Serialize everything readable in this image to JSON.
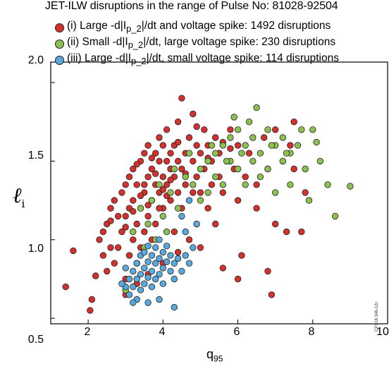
{
  "chart_data": {
    "type": "scatter",
    "title": "JET-ILW disruptions in the range of Pulse No: 81028-92504",
    "title_prefix": "JET-ILW disruptions in the range of Pulse ",
    "title_no": "No",
    "title_suffix": ": 81028-92504",
    "xlabel": "q",
    "xlabel_sub": "95",
    "ylabel": "ℓ",
    "ylabel_sub": "i",
    "xlim": [
      1,
      10
    ],
    "ylim": [
      0.5,
      2.1
    ],
    "xticks": [
      "2",
      "4",
      "6",
      "8",
      "10"
    ],
    "yticks": [
      "0.5",
      "1.0",
      "1.5",
      "2.0"
    ],
    "grid": false,
    "legend_position": "top-left",
    "figure_code": "CPS18.346-12c",
    "series": [
      {
        "name": "(i) Large -d|Ip_2|/dt and voltage spike: 1492 disruptions",
        "legend_parts": [
          "(i) Large -d|I",
          "p_2",
          "|/dt and voltage spike: 1492 disruptions"
        ],
        "color": "#d2322d",
        "points": [
          [
            1.4,
            0.7
          ],
          [
            1.6,
            0.93
          ],
          [
            2.05,
            0.55
          ],
          [
            2.1,
            0.62
          ],
          [
            2.2,
            0.77
          ],
          [
            2.3,
            1.0
          ],
          [
            2.4,
            1.05
          ],
          [
            2.5,
            1.1
          ],
          [
            2.4,
            0.9
          ],
          [
            2.6,
            0.95
          ],
          [
            2.6,
            1.2
          ],
          [
            2.7,
            1.25
          ],
          [
            2.5,
            0.8
          ],
          [
            2.7,
            0.85
          ],
          [
            2.8,
            0.95
          ],
          [
            2.9,
            1.3
          ],
          [
            2.9,
            1.05
          ],
          [
            3.0,
            1.15
          ],
          [
            3.0,
            1.35
          ],
          [
            3.0,
            0.75
          ],
          [
            3.1,
            0.9
          ],
          [
            3.1,
            1.2
          ],
          [
            3.1,
            1.4
          ],
          [
            3.2,
            1.0
          ],
          [
            3.2,
            1.25
          ],
          [
            3.2,
            1.45
          ],
          [
            3.3,
            1.1
          ],
          [
            3.3,
            1.35
          ],
          [
            3.3,
            0.85
          ],
          [
            3.4,
            1.2
          ],
          [
            3.4,
            1.5
          ],
          [
            3.4,
            0.95
          ],
          [
            3.5,
            1.3
          ],
          [
            3.5,
            1.05
          ],
          [
            3.5,
            1.55
          ],
          [
            3.6,
            1.15
          ],
          [
            3.6,
            1.4
          ],
          [
            3.6,
            1.6
          ],
          [
            3.7,
            1.25
          ],
          [
            3.7,
            1.0
          ],
          [
            3.7,
            1.45
          ],
          [
            3.8,
            1.35
          ],
          [
            3.8,
            1.55
          ],
          [
            3.8,
            1.1
          ],
          [
            3.9,
            1.3
          ],
          [
            3.9,
            1.5
          ],
          [
            3.9,
            1.65
          ],
          [
            4.0,
            1.2
          ],
          [
            4.0,
            1.4
          ],
          [
            4.0,
            1.6
          ],
          [
            4.1,
            1.35
          ],
          [
            4.1,
            1.5
          ],
          [
            4.1,
            1.7
          ],
          [
            4.2,
            1.25
          ],
          [
            4.2,
            1.45
          ],
          [
            4.2,
            1.55
          ],
          [
            4.3,
            1.4
          ],
          [
            4.3,
            1.6
          ],
          [
            4.3,
            1.05
          ],
          [
            4.4,
            1.5
          ],
          [
            4.4,
            1.3
          ],
          [
            4.4,
            1.75
          ],
          [
            4.5,
            1.9
          ],
          [
            4.5,
            1.45
          ],
          [
            4.5,
            1.2
          ],
          [
            4.6,
            1.55
          ],
          [
            4.6,
            1.35
          ],
          [
            4.7,
            1.65
          ],
          [
            4.7,
            1.0
          ],
          [
            4.8,
            1.5
          ],
          [
            4.8,
            1.8
          ],
          [
            4.9,
            1.4
          ],
          [
            4.9,
            1.6
          ],
          [
            5.0,
            1.3
          ],
          [
            5.0,
            1.55
          ],
          [
            5.0,
            0.95
          ],
          [
            5.1,
            1.7
          ],
          [
            5.1,
            1.45
          ],
          [
            5.2,
            1.2
          ],
          [
            5.2,
            1.6
          ],
          [
            5.3,
            1.5
          ],
          [
            5.3,
            1.35
          ],
          [
            5.4,
            1.65
          ],
          [
            5.4,
            1.1
          ],
          [
            5.5,
            1.55
          ],
          [
            5.5,
            1.4
          ],
          [
            5.6,
            1.3
          ],
          [
            5.7,
            1.5
          ],
          [
            5.8,
            1.7
          ],
          [
            5.9,
            1.45
          ],
          [
            6.0,
            1.25
          ],
          [
            6.0,
            1.6
          ],
          [
            6.1,
            0.9
          ],
          [
            6.2,
            1.4
          ],
          [
            6.3,
            1.55
          ],
          [
            6.5,
            1.2
          ],
          [
            6.5,
            1.35
          ],
          [
            6.7,
            1.65
          ],
          [
            6.8,
            1.45
          ],
          [
            6.9,
            0.65
          ],
          [
            7.0,
            1.7
          ],
          [
            7.0,
            1.1
          ],
          [
            7.2,
            1.5
          ],
          [
            7.3,
            1.05
          ],
          [
            7.4,
            1.6
          ],
          [
            7.5,
            1.75
          ],
          [
            7.5,
            1.45
          ],
          [
            7.7,
            1.05
          ],
          [
            7.8,
            1.3
          ],
          [
            3.0,
            0.65
          ],
          [
            3.3,
            0.72
          ],
          [
            3.6,
            0.78
          ],
          [
            4.0,
            0.85
          ],
          [
            4.4,
            0.92
          ],
          [
            5.6,
            0.82
          ],
          [
            6.0,
            0.75
          ],
          [
            6.8,
            0.8
          ],
          [
            2.8,
            1.15
          ],
          [
            3.5,
            1.35
          ],
          [
            3.7,
            1.52
          ],
          [
            3.9,
            1.2
          ],
          [
            4.1,
            1.28
          ],
          [
            3.4,
            1.28
          ],
          [
            3.6,
            1.22
          ],
          [
            3.8,
            1.42
          ],
          [
            4.0,
            1.32
          ],
          [
            4.2,
            1.38
          ],
          [
            4.6,
            1.42
          ],
          [
            5.2,
            1.52
          ],
          [
            4.8,
            1.3
          ],
          [
            5.6,
            1.62
          ],
          [
            3.2,
            1.18
          ],
          [
            3.0,
            1.08
          ],
          [
            3.3,
            1.48
          ],
          [
            4.4,
            1.62
          ],
          [
            4.9,
            1.72
          ],
          [
            5.8,
            1.58
          ],
          [
            2.6,
            1.12
          ]
        ]
      },
      {
        "name": "(ii) Small -d|Ip_2|/dt, large voltage spike: 230 disruptions",
        "legend_parts": [
          "(ii) Small -d|I",
          "p_2",
          "|/dt, large voltage spike: 230 disruptions"
        ],
        "color": "#8cc152",
        "points": [
          [
            3.4,
            1.2
          ],
          [
            3.6,
            1.1
          ],
          [
            3.8,
            1.0
          ],
          [
            4.0,
            1.15
          ],
          [
            4.2,
            1.3
          ],
          [
            4.4,
            1.2
          ],
          [
            4.6,
            1.4
          ],
          [
            4.8,
            1.35
          ],
          [
            5.0,
            1.45
          ],
          [
            5.0,
            1.25
          ],
          [
            5.2,
            1.5
          ],
          [
            5.2,
            1.3
          ],
          [
            5.4,
            1.55
          ],
          [
            5.4,
            1.4
          ],
          [
            5.6,
            1.6
          ],
          [
            5.6,
            1.35
          ],
          [
            5.8,
            1.65
          ],
          [
            5.8,
            1.5
          ],
          [
            6.0,
            1.7
          ],
          [
            6.0,
            1.45
          ],
          [
            6.2,
            1.6
          ],
          [
            6.2,
            1.35
          ],
          [
            6.4,
            1.65
          ],
          [
            6.4,
            1.5
          ],
          [
            6.6,
            1.55
          ],
          [
            6.6,
            1.4
          ],
          [
            6.8,
            1.7
          ],
          [
            6.8,
            1.45
          ],
          [
            7.0,
            1.6
          ],
          [
            7.0,
            1.3
          ],
          [
            7.2,
            1.5
          ],
          [
            7.2,
            1.65
          ],
          [
            7.4,
            1.55
          ],
          [
            7.4,
            1.35
          ],
          [
            7.6,
            1.6
          ],
          [
            7.8,
            1.45
          ],
          [
            7.9,
            1.25
          ],
          [
            8.0,
            1.7
          ],
          [
            8.2,
            1.5
          ],
          [
            8.4,
            1.35
          ],
          [
            8.6,
            1.15
          ],
          [
            9.0,
            1.34
          ],
          [
            6.5,
            1.84
          ],
          [
            5.9,
            1.78
          ],
          [
            4.7,
            1.55
          ],
          [
            4.3,
            1.45
          ],
          [
            3.9,
            1.35
          ],
          [
            3.7,
            1.25
          ],
          [
            3.5,
            0.95
          ],
          [
            3.3,
            0.85
          ],
          [
            3.2,
            1.05
          ],
          [
            4.1,
            1.05
          ],
          [
            5.3,
            1.6
          ],
          [
            5.7,
            1.5
          ],
          [
            6.1,
            1.55
          ],
          [
            6.3,
            1.75
          ],
          [
            6.9,
            1.6
          ],
          [
            7.3,
            1.55
          ],
          [
            7.7,
            1.7
          ],
          [
            8.1,
            1.62
          ],
          [
            3.0,
            0.68
          ]
        ]
      },
      {
        "name": "(iii) Large -d|Ip_2|/dt, small voltage spike: 114 disruptions",
        "legend_parts": [
          "(iii) Large -d|I",
          "p_2",
          "|/dt, small voltage spike: 114 disruptions"
        ],
        "color": "#5ba8dc",
        "points": [
          [
            3.0,
            0.7
          ],
          [
            3.1,
            0.75
          ],
          [
            3.1,
            0.65
          ],
          [
            3.2,
            0.8
          ],
          [
            3.2,
            0.7
          ],
          [
            3.3,
            0.85
          ],
          [
            3.3,
            0.75
          ],
          [
            3.3,
            0.62
          ],
          [
            3.4,
            0.9
          ],
          [
            3.4,
            0.78
          ],
          [
            3.4,
            0.68
          ],
          [
            3.5,
            0.82
          ],
          [
            3.5,
            0.72
          ],
          [
            3.5,
            0.92
          ],
          [
            3.6,
            0.86
          ],
          [
            3.6,
            0.76
          ],
          [
            3.6,
            0.96
          ],
          [
            3.7,
            0.8
          ],
          [
            3.7,
            0.9
          ],
          [
            3.7,
            0.7
          ],
          [
            3.8,
            0.85
          ],
          [
            3.8,
            0.95
          ],
          [
            3.8,
            0.75
          ],
          [
            3.9,
            0.88
          ],
          [
            3.9,
            0.78
          ],
          [
            3.9,
            1.0
          ],
          [
            4.0,
            0.82
          ],
          [
            4.0,
            0.92
          ],
          [
            4.0,
            0.72
          ],
          [
            4.1,
            0.86
          ],
          [
            4.1,
            0.96
          ],
          [
            4.2,
            0.8
          ],
          [
            4.2,
            0.9
          ],
          [
            4.3,
            0.85
          ],
          [
            4.3,
            0.75
          ],
          [
            4.4,
            0.88
          ],
          [
            4.5,
            0.8
          ],
          [
            4.6,
            0.9
          ],
          [
            4.7,
            0.85
          ],
          [
            4.8,
            0.95
          ],
          [
            4.3,
            0.57
          ],
          [
            3.9,
            0.62
          ],
          [
            4.6,
            1.05
          ],
          [
            4.9,
            1.1
          ],
          [
            4.7,
            1.25
          ],
          [
            4.5,
            1.15
          ],
          [
            3.6,
            0.6
          ],
          [
            3.2,
            0.6
          ],
          [
            3.0,
            0.82
          ],
          [
            2.9,
            0.72
          ]
        ]
      }
    ]
  }
}
